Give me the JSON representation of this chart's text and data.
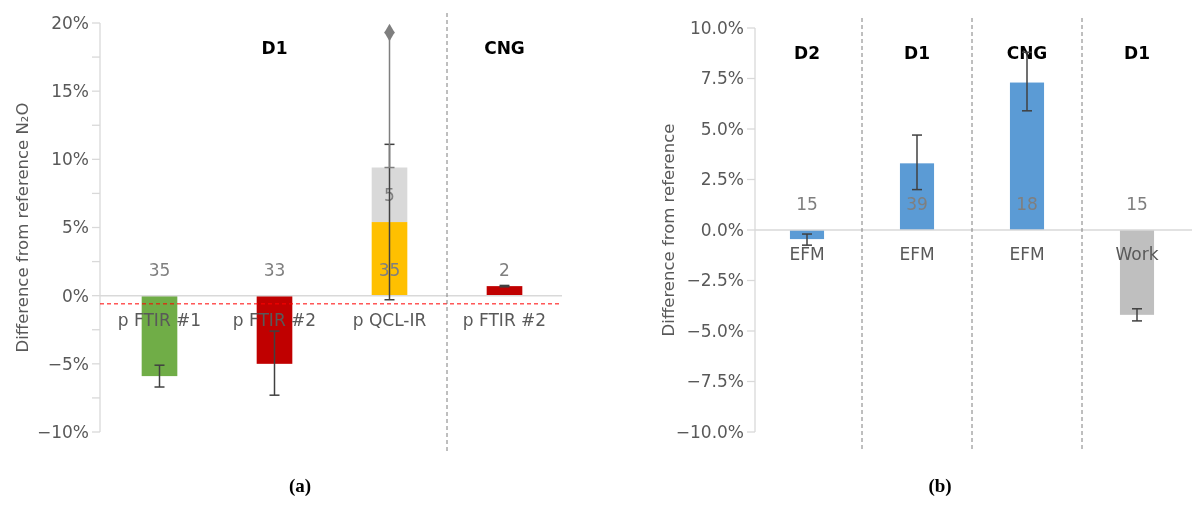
{
  "chart_data": [
    {
      "type": "bar",
      "title": "(a)",
      "ylabel": "Difference from reference N₂O",
      "stacked": true,
      "categories": [
        "p FTIR #1",
        "p FTIR #2",
        "p QCL-IR",
        "p FTIR #2"
      ],
      "series": [
        {
          "values": [
            -5.9,
            -5.0,
            5.4,
            0.7
          ],
          "colors": [
            "#70ad47",
            "#c00000",
            "#ffc000",
            "#c00000"
          ],
          "errors": [
            [
              -6.7,
              -5.1
            ],
            [
              -7.3,
              -2.6
            ],
            [
              -0.3,
              11.1
            ],
            [
              0.65,
              0.75
            ]
          ]
        },
        {
          "values": [
            null,
            null,
            4.0,
            null
          ],
          "color": "#d9d9d9",
          "errors": [
            null,
            null,
            [
              9.4,
              19.3
            ],
            null
          ]
        },
        {
          "type": "scatter",
          "marker": "diamond",
          "color": "#7f7f7f",
          "values": [
            null,
            null,
            19.3,
            null
          ]
        }
      ],
      "ylim": [
        -10,
        20
      ],
      "yticks": [
        {
          "value": -10,
          "label": "−10%"
        },
        {
          "value": -7.5,
          "label": null
        },
        {
          "value": -5,
          "label": "−5%"
        },
        {
          "value": -2.5,
          "label": null
        },
        {
          "value": 0,
          "label": "0%"
        },
        {
          "value": 2.5,
          "label": null
        },
        {
          "value": 5,
          "label": "5%"
        },
        {
          "value": 7.5,
          "label": null
        },
        {
          "value": 10,
          "label": "10%"
        },
        {
          "value": 12.5,
          "label": null
        },
        {
          "value": 15,
          "label": "15%"
        },
        {
          "value": 17.5,
          "label": null
        },
        {
          "value": 20,
          "label": "20%"
        }
      ],
      "ref_lines": [
        {
          "axis": "y",
          "value": -0.6,
          "color": "#ff0000",
          "line_style": "dashed"
        }
      ],
      "annotations": [
        "35",
        "33",
        "35",
        "5",
        "2",
        "D1",
        "CNG"
      ]
    },
    {
      "type": "bar",
      "title": "(b)",
      "ylabel": "Difference from reference",
      "categories": [
        "EFM",
        "EFM",
        "EFM",
        "Work"
      ],
      "series": [
        {
          "values": [
            -0.45,
            3.3,
            7.3,
            -4.2
          ],
          "colors": [
            "#5b9bd5",
            "#5b9bd5",
            "#5b9bd5",
            "#bfbfbf"
          ],
          "errors": [
            [
              -0.75,
              -0.2
            ],
            [
              2.0,
              4.7
            ],
            [
              5.9,
              8.8
            ],
            [
              -4.5,
              -3.9
            ]
          ]
        }
      ],
      "ylim": [
        -10,
        10
      ],
      "yticks": [
        {
          "value": -10,
          "label": "−10.0%"
        },
        {
          "value": -7.5,
          "label": "−7.5%"
        },
        {
          "value": -5,
          "label": "−5.0%"
        },
        {
          "value": -2.5,
          "label": "−2.5%"
        },
        {
          "value": 0,
          "label": "0.0%"
        },
        {
          "value": 2.5,
          "label": "2.5%"
        },
        {
          "value": 5,
          "label": "5.0%"
        },
        {
          "value": 7.5,
          "label": "7.5%"
        },
        {
          "value": 10,
          "label": "10.0%"
        }
      ],
      "annotations": [
        "15",
        "39",
        "18",
        "15",
        "D2",
        "D1",
        "CNG",
        "D1"
      ]
    }
  ]
}
